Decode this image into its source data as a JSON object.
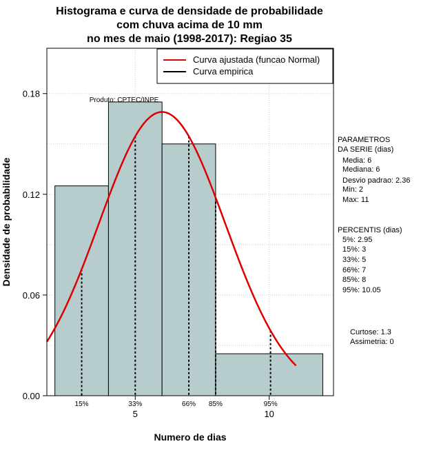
{
  "chart_data": {
    "type": "bar",
    "title_lines": [
      "Histograma e curva de densidade de probabilidade",
      "com chuva acima de 10 mm",
      "no mes de maio (1998-2017): Regiao 35"
    ],
    "xlabel": "Numero de dias",
    "ylabel": "Densidade de probabilidade",
    "xlim": [
      1.7,
      12.4
    ],
    "ylim": [
      0,
      0.207
    ],
    "x_ticks": [
      5,
      10
    ],
    "y_ticks": [
      0.0,
      0.06,
      0.12,
      0.18
    ],
    "y_tick_labels": [
      "0.00",
      "0.06",
      "0.12",
      "0.18"
    ],
    "bins": [
      {
        "x0": 2,
        "x1": 4,
        "density": 0.125
      },
      {
        "x0": 4,
        "x1": 6,
        "density": 0.175
      },
      {
        "x0": 6,
        "x1": 8,
        "density": 0.15
      },
      {
        "x0": 8,
        "x1": 12,
        "density": 0.025
      }
    ],
    "normal_curve": {
      "mean": 6,
      "sd": 2.36,
      "x_from": 1.7,
      "x_to": 11
    },
    "percentile_lines": [
      {
        "label": "15%",
        "x": 3
      },
      {
        "label": "33%",
        "x": 5
      },
      {
        "label": "66%",
        "x": 7
      },
      {
        "label": "85%",
        "x": 8
      },
      {
        "label": "95%",
        "x": 10.05
      }
    ],
    "legend": {
      "placement": "top-right",
      "entries": [
        {
          "label": "Curva ajustada (funcao Normal)",
          "color": "#dd0000"
        },
        {
          "label": "Curva empirica",
          "color": "#000000"
        }
      ]
    },
    "annotation": "Produto: CPTEC/INPE",
    "bar_color": "#b7cccc",
    "grid": true
  },
  "side_panel": {
    "parametros_title": [
      "PARAMETROS",
      "DA SERIE (dias)"
    ],
    "parametros": [
      "Media: 6",
      "Mediana: 6",
      "Desvio padrao: 2.36",
      "Min: 2",
      "Max: 11"
    ],
    "percentis_title": "PERCENTIS (dias)",
    "percentis": [
      "5%: 2.95",
      "15%: 3",
      "33%: 5",
      "66%: 7",
      "85%: 8",
      "95%: 10.05"
    ],
    "stats": [
      "Curtose: 1.3",
      "Assimetria: 0"
    ]
  }
}
